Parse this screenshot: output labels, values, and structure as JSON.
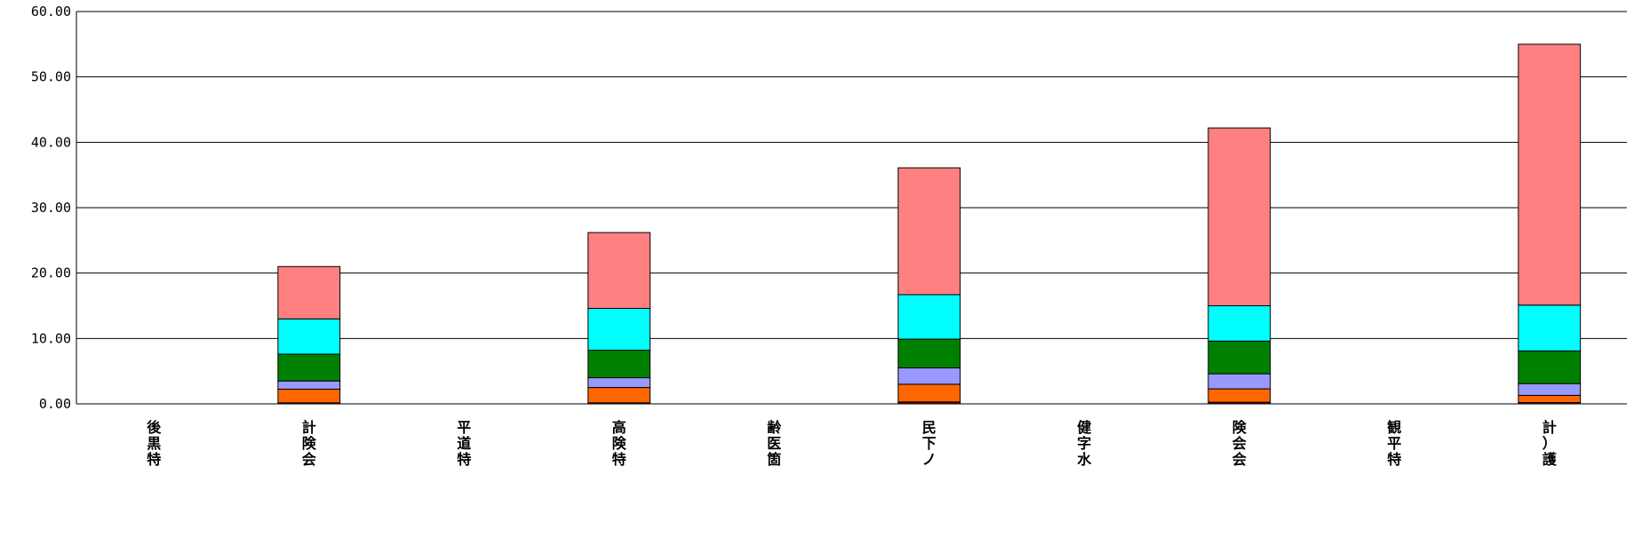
{
  "chart_data": {
    "type": "bar",
    "stacked": true,
    "title": "",
    "xlabel": "",
    "ylabel": "",
    "ylim": [
      0,
      60
    ],
    "y_ticks": [
      "0.00",
      "10.00",
      "20.00",
      "30.00",
      "40.00",
      "50.00",
      "60.00"
    ],
    "grid": true,
    "legend": "none",
    "categories": [
      "後黒特",
      "計険会",
      "平道特",
      "高険特",
      "齢医箇",
      "民下ノ",
      "健字水",
      "険会会",
      "観平特",
      "計）護"
    ],
    "series": [
      {
        "color": "#800000",
        "values": [
          0,
          0.15,
          0,
          0.15,
          0,
          0.3,
          0,
          0.25,
          0,
          0.2
        ]
      },
      {
        "color": "#FF6600",
        "values": [
          0,
          2.1,
          0,
          2.35,
          0,
          2.7,
          0,
          2.05,
          0,
          1.1
        ]
      },
      {
        "color": "#9999FF",
        "values": [
          0,
          1.25,
          0,
          1.5,
          0,
          2.5,
          0,
          2.3,
          0,
          1.8
        ]
      },
      {
        "color": "#008000",
        "values": [
          0,
          4.1,
          0,
          4.2,
          0,
          4.4,
          0,
          5.0,
          0,
          5.0
        ]
      },
      {
        "color": "#00FFFF",
        "values": [
          0,
          5.4,
          0,
          6.4,
          0,
          6.8,
          0,
          5.4,
          0,
          7.0
        ]
      },
      {
        "color": "#FF8080",
        "values": [
          0,
          8.0,
          0,
          11.6,
          0,
          19.4,
          0,
          27.2,
          0,
          39.9
        ]
      }
    ]
  }
}
